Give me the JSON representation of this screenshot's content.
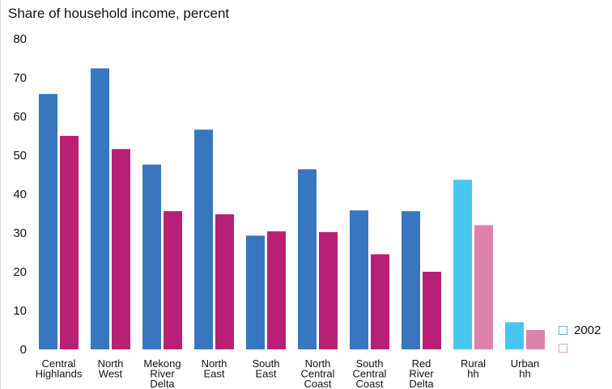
{
  "chart_data": {
    "type": "bar",
    "title": "Share of household income, percent",
    "ylim": [
      0,
      80
    ],
    "yticks": [
      0,
      10,
      20,
      30,
      40,
      50,
      60,
      70,
      80
    ],
    "grid": false,
    "legend_position": "bottom-right",
    "categories": [
      [
        "Central",
        "Highlands"
      ],
      [
        "North",
        "West"
      ],
      [
        "Mekong",
        "River",
        "Delta"
      ],
      [
        "North",
        "East"
      ],
      [
        "South",
        "East"
      ],
      [
        "North",
        "Central",
        "Coast"
      ],
      [
        "South",
        "Central",
        "Coast"
      ],
      [
        "Red",
        "River",
        "Delta"
      ],
      [
        "Rural",
        "hh"
      ],
      [
        "Urban",
        "hh"
      ]
    ],
    "series": [
      {
        "name": "2002",
        "values": [
          65.8,
          72.4,
          47.6,
          56.6,
          29.3,
          46.4,
          35.8,
          35.6,
          43.7,
          7.0
        ]
      },
      {
        "name": "",
        "values": [
          55.0,
          51.6,
          35.6,
          34.8,
          30.4,
          30.2,
          24.5,
          20.0,
          32.0,
          5.0
        ]
      }
    ],
    "colors": {
      "series1_region": "#3876c0",
      "series2_region": "#b82076",
      "series1_household": "#47c7ef",
      "series2_household": "#dd82ab",
      "legend_series1_border": "#6aaee0",
      "legend_series2_border": "#e3a0c5"
    }
  }
}
